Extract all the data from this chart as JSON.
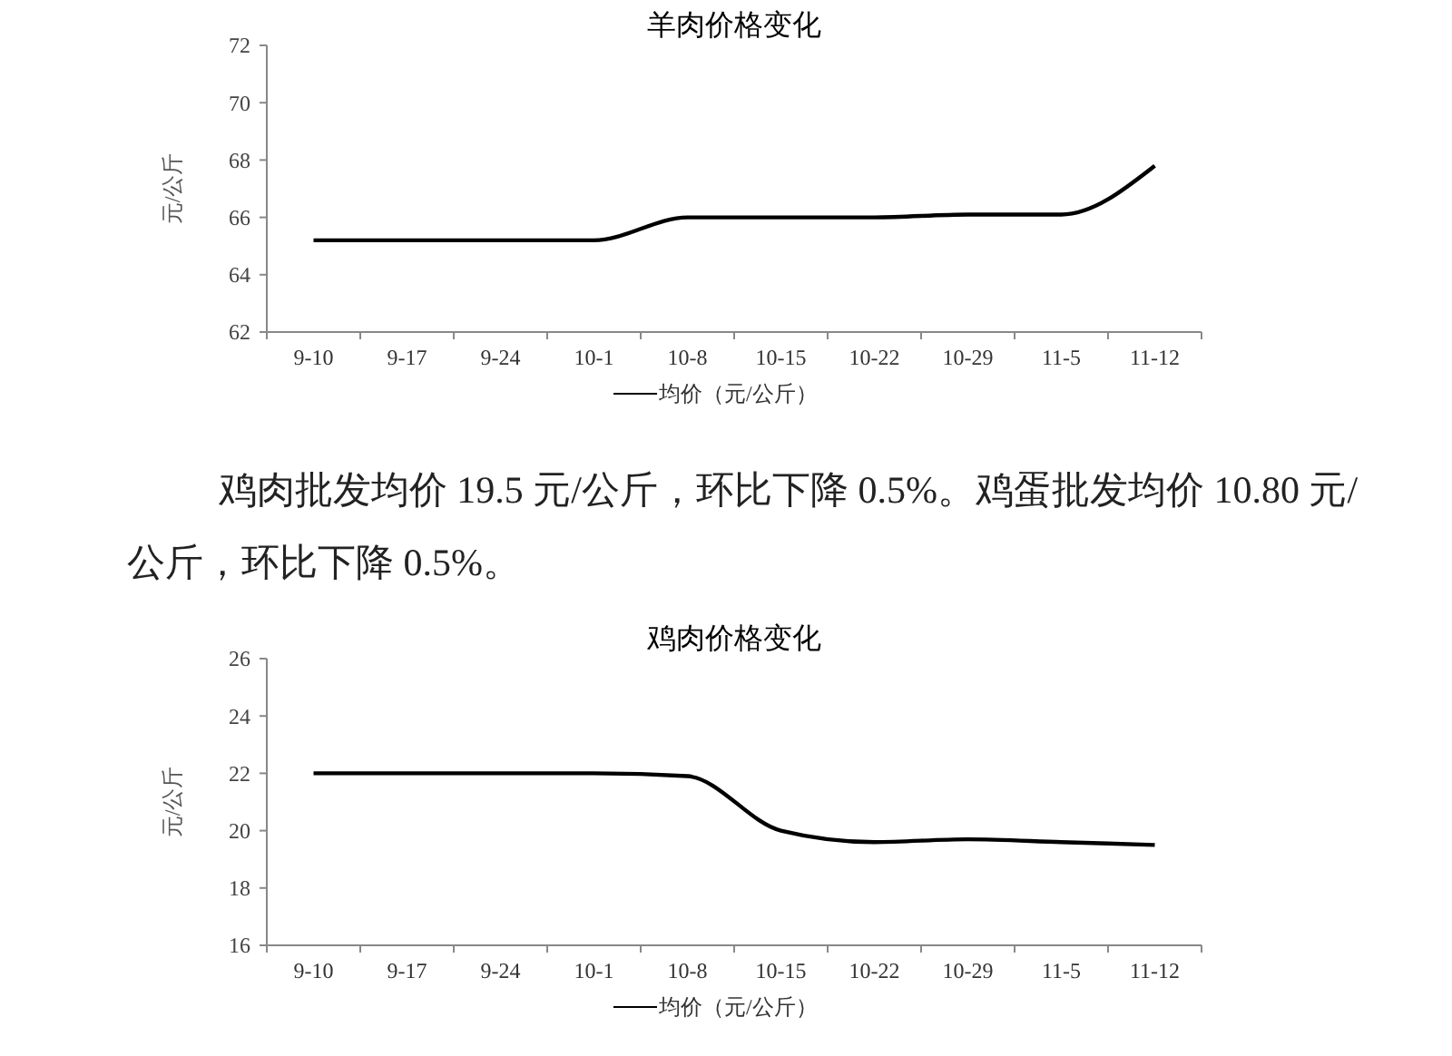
{
  "chart_data": [
    {
      "type": "line",
      "title": "羊肉价格变化",
      "ylabel": "元/公斤",
      "categories": [
        "9-10",
        "9-17",
        "9-24",
        "10-1",
        "10-8",
        "10-15",
        "10-22",
        "10-29",
        "11-5",
        "11-12"
      ],
      "series": [
        {
          "name": "均价（元/公斤）",
          "color": "#000000",
          "values": [
            65.2,
            65.2,
            65.2,
            65.2,
            66.0,
            66.0,
            66.0,
            66.1,
            66.1,
            67.8
          ]
        }
      ],
      "ylim": [
        62,
        72
      ],
      "yticks": [
        62,
        64,
        66,
        68,
        70,
        72
      ],
      "legend": "bottom",
      "grid": false,
      "marker": "none"
    },
    {
      "type": "other",
      "annotations": [
        "鸡肉批发均价 19.5 元/公斤，环比下降 0.5%。鸡蛋批发均价 10.80 元/公斤，环比下降 0.5%。"
      ]
    },
    {
      "type": "line",
      "title": "鸡肉价格变化",
      "ylabel": "元/公斤",
      "categories": [
        "9-10",
        "9-17",
        "9-24",
        "10-1",
        "10-8",
        "10-15",
        "10-22",
        "10-29",
        "11-5",
        "11-12"
      ],
      "series": [
        {
          "name": "均价（元/公斤）",
          "color": "#000000",
          "values": [
            22.0,
            22.0,
            22.0,
            22.0,
            21.9,
            20.0,
            19.6,
            19.7,
            19.6,
            19.5
          ]
        }
      ],
      "ylim": [
        16,
        26
      ],
      "yticks": [
        16,
        18,
        20,
        22,
        24,
        26
      ],
      "legend": "bottom",
      "grid": false,
      "marker": "none"
    }
  ]
}
